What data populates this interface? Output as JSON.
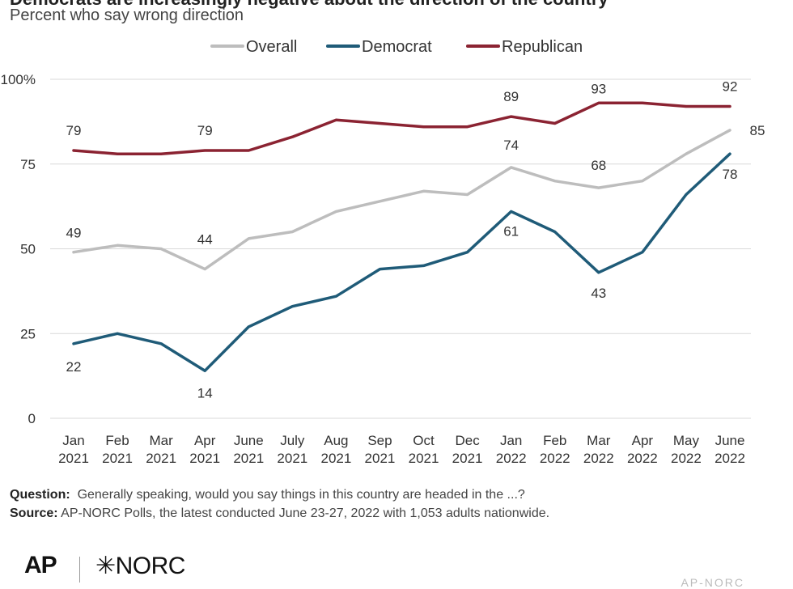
{
  "header": {
    "title": "Democrats are increasingly negative about the direction of the country",
    "subtitle": "Percent who say wrong direction"
  },
  "legend": {
    "items": [
      {
        "label": "Overall",
        "color": "#bdbdbd"
      },
      {
        "label": "Democrat",
        "color": "#1f5b78"
      },
      {
        "label": "Republican",
        "color": "#8b2332"
      }
    ]
  },
  "chart_data": {
    "type": "line",
    "categories": [
      [
        "Jan",
        "2021"
      ],
      [
        "Feb",
        "2021"
      ],
      [
        "Mar",
        "2021"
      ],
      [
        "Apr",
        "2021"
      ],
      [
        "June",
        "2021"
      ],
      [
        "July",
        "2021"
      ],
      [
        "Aug",
        "2021"
      ],
      [
        "Sep",
        "2021"
      ],
      [
        "Oct",
        "2021"
      ],
      [
        "Dec",
        "2021"
      ],
      [
        "Jan",
        "2022"
      ],
      [
        "Feb",
        "2022"
      ],
      [
        "Mar",
        "2022"
      ],
      [
        "Apr",
        "2022"
      ],
      [
        "May",
        "2022"
      ],
      [
        "June",
        "2022"
      ]
    ],
    "y_ticks": [
      "0",
      "25",
      "50",
      "75",
      "100%"
    ],
    "y_tick_values": [
      0,
      25,
      50,
      75,
      100
    ],
    "ylim": [
      0,
      100
    ],
    "grid": true,
    "legend_position": "top-center",
    "series": [
      {
        "name": "Overall",
        "color": "#bdbdbd",
        "values": [
          49,
          51,
          50,
          44,
          53,
          55,
          61,
          64,
          67,
          66,
          74,
          70,
          68,
          70,
          78,
          85
        ],
        "labels": {
          "0": "49",
          "3": "44",
          "10": "74",
          "12": "68",
          "15": "85"
        }
      },
      {
        "name": "Democrat",
        "color": "#1f5b78",
        "values": [
          22,
          25,
          22,
          14,
          27,
          33,
          36,
          44,
          45,
          49,
          61,
          55,
          43,
          49,
          66,
          78
        ],
        "labels": {
          "0": "22",
          "3": "14",
          "10": "61",
          "12": "43",
          "15": "78"
        }
      },
      {
        "name": "Republican",
        "color": "#8b2332",
        "values": [
          79,
          78,
          78,
          79,
          79,
          83,
          88,
          87,
          86,
          86,
          89,
          87,
          93,
          93,
          92,
          92
        ],
        "labels": {
          "0": "79",
          "3": "79",
          "10": "89",
          "12": "93",
          "15": "92"
        }
      }
    ]
  },
  "footer": {
    "question_label": "Question:",
    "question_text": "Generally speaking, would you say things in this country are headed in the ...?",
    "source_label": "Source:",
    "source_text": "AP-NORC Polls, the latest conducted June 23-27, 2022 with 1,053 adults nationwide.",
    "logo_ap": "AP",
    "logo_norc": "✳NORC",
    "credit": "AP-NORC"
  }
}
